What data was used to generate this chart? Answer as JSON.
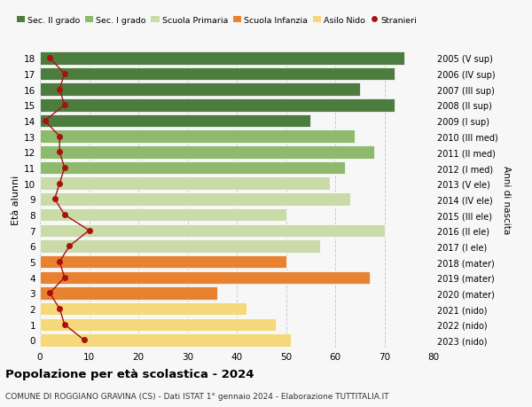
{
  "ages": [
    0,
    1,
    2,
    3,
    4,
    5,
    6,
    7,
    8,
    9,
    10,
    11,
    12,
    13,
    14,
    15,
    16,
    17,
    18
  ],
  "bar_values": [
    51,
    48,
    42,
    36,
    67,
    50,
    57,
    70,
    50,
    63,
    59,
    62,
    68,
    64,
    55,
    72,
    65,
    72,
    74
  ],
  "bar_colors": [
    "#f5d87a",
    "#f5d87a",
    "#f5d87a",
    "#e88230",
    "#e88230",
    "#e88230",
    "#c8dba8",
    "#c8dba8",
    "#c8dba8",
    "#c8dba8",
    "#c8dba8",
    "#8fba6e",
    "#8fba6e",
    "#8fba6e",
    "#4d7c3f",
    "#4d7c3f",
    "#4d7c3f",
    "#4d7c3f",
    "#4d7c3f"
  ],
  "stranieri_values": [
    9,
    5,
    4,
    2,
    5,
    4,
    6,
    10,
    5,
    3,
    4,
    5,
    4,
    4,
    1,
    5,
    4,
    5,
    2
  ],
  "right_labels": [
    "2023 (nido)",
    "2022 (nido)",
    "2021 (nido)",
    "2020 (mater)",
    "2019 (mater)",
    "2018 (mater)",
    "2017 (I ele)",
    "2016 (II ele)",
    "2015 (III ele)",
    "2014 (IV ele)",
    "2013 (V ele)",
    "2012 (I med)",
    "2011 (II med)",
    "2010 (III med)",
    "2009 (I sup)",
    "2008 (II sup)",
    "2007 (III sup)",
    "2006 (IV sup)",
    "2005 (V sup)"
  ],
  "legend_labels": [
    "Sec. II grado",
    "Sec. I grado",
    "Scuola Primaria",
    "Scuola Infanzia",
    "Asilo Nido",
    "Stranieri"
  ],
  "legend_colors": [
    "#4d7c3f",
    "#8fba6e",
    "#c8dba8",
    "#e88230",
    "#f5d87a",
    "#aa1111"
  ],
  "ylabel": "Età alunni",
  "right_ylabel": "Anni di nascita",
  "title": "Popolazione per età scolastica - 2024",
  "subtitle": "COMUNE DI ROGGIANO GRAVINA (CS) - Dati ISTAT 1° gennaio 2024 - Elaborazione TUTTITALIA.IT",
  "xlim": [
    0,
    80
  ],
  "xticks": [
    0,
    10,
    20,
    30,
    40,
    50,
    60,
    70,
    80
  ],
  "bg_color": "#f7f7f7",
  "grid_color": "#cccccc",
  "bar_height": 0.82
}
